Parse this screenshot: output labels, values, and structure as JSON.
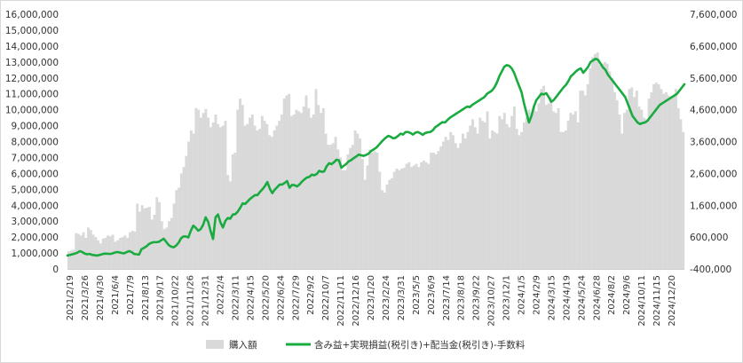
{
  "chart_data": {
    "type": "bar+line",
    "title": "",
    "colors": {
      "bar": "#d9d9d9",
      "line": "#1aab40",
      "axis_text": "#333333"
    },
    "left_axis": {
      "ylim": [
        0,
        16000000
      ],
      "ticks": [
        0,
        1000000,
        2000000,
        3000000,
        4000000,
        5000000,
        6000000,
        7000000,
        8000000,
        9000000,
        10000000,
        11000000,
        12000000,
        13000000,
        14000000,
        15000000,
        16000000
      ],
      "tick_labels": [
        "0",
        "1,000,000",
        "2,000,000",
        "3,000,000",
        "4,000,000",
        "5,000,000",
        "6,000,000",
        "7,000,000",
        "8,000,000",
        "9,000,000",
        "10,000,000",
        "11,000,000",
        "12,000,000",
        "13,000,000",
        "14,000,000",
        "15,000,000",
        "16,000,000"
      ]
    },
    "right_axis": {
      "ylim": [
        -400000,
        7600000
      ],
      "ticks": [
        -400000,
        600000,
        1600000,
        2600000,
        3600000,
        4600000,
        5600000,
        6600000,
        7600000
      ],
      "tick_labels": [
        "-400,000",
        "600,000",
        "1,600,000",
        "2,600,000",
        "3,600,000",
        "4,600,000",
        "5,600,000",
        "6,600,000",
        "7,600,000"
      ]
    },
    "x_tick_labels": [
      "2021/2/19",
      "2021/3/26",
      "2021/4/30",
      "2021/6/4",
      "2021/7/9",
      "2021/8/13",
      "2021/9/17",
      "2021/10/22",
      "2021/11/26",
      "2021/12/31",
      "2022/2/4",
      "2022/3/11",
      "2022/4/15",
      "2022/5/20",
      "2022/6/24",
      "2022/7/29",
      "2022/9/2",
      "2022/10/7",
      "2022/11/11",
      "2022/12/16",
      "2023/1/20",
      "2023/2/24",
      "2023/3/31",
      "2023/5/5",
      "2023/6/9",
      "2023/7/14",
      "2023/8/18",
      "2023/9/22",
      "2023/10/27",
      "2023/12/1",
      "2024/1/5",
      "2024/2/9",
      "2024/3/15",
      "2024/4/19",
      "2024/5/24",
      "2024/6/28",
      "2024/8/2",
      "2024/9/6",
      "2024/10/11",
      "2024/11/15",
      "2024/12/20"
    ],
    "legend": {
      "placement": "bottom",
      "bar_label": "購入額",
      "line_label": "含み益+実現損益(税引き)+配当金(税引き)-手数料"
    },
    "series": [
      {
        "name": "購入額",
        "axis": "left",
        "kind": "bar",
        "values": [
          1100000,
          1150000,
          1200000,
          2250000,
          2200000,
          2100000,
          2300000,
          1950000,
          2600000,
          2450000,
          2150000,
          2000000,
          1800000,
          1600000,
          1900000,
          1950000,
          2100000,
          2050000,
          2150000,
          1700000,
          1800000,
          1950000,
          2000000,
          2100000,
          1950000,
          2300000,
          2400000,
          2350000,
          4100000,
          3600000,
          4000000,
          3800000,
          3850000,
          3900000,
          3100000,
          3400000,
          4500000,
          4200000,
          3000000,
          2500000,
          2600000,
          3000000,
          3200000,
          4100000,
          4950000,
          5100000,
          6000000,
          6400000,
          7100000,
          8000000,
          8700000,
          8500000,
          10100000,
          10000000,
          9500000,
          9800000,
          10050000,
          9500000,
          8900000,
          9200000,
          9700000,
          9100000,
          8900000,
          9000000,
          9300000,
          5900000,
          5500000,
          7200000,
          7300000,
          10000000,
          10700000,
          10300000,
          9000000,
          9100000,
          9500000,
          9700000,
          9000000,
          8700000,
          8800000,
          9600000,
          9300000,
          9100000,
          8400000,
          8300000,
          8700000,
          9000000,
          9300000,
          9700000,
          10700000,
          10900000,
          11000000,
          9600000,
          9700000,
          10000000,
          9900000,
          9800000,
          10200000,
          10900000,
          10100000,
          9500000,
          9700000,
          11300000,
          10300000,
          9800000,
          10100000,
          8500000,
          7800000,
          7800000,
          7900000,
          8300000,
          7500000,
          7000000,
          6200000,
          6200000,
          7200000,
          7600000,
          7800000,
          8700000,
          8500000,
          8200000,
          6900000,
          5600000,
          6500000,
          7500000,
          7300000,
          7400000,
          7300000,
          6100000,
          4950000,
          4800000,
          5300000,
          5600000,
          5700000,
          6100000,
          6300000,
          6200000,
          6300000,
          6350000,
          6600000,
          6700000,
          6400000,
          6500000,
          6600000,
          6400000,
          6700000,
          6800000,
          6700000,
          6600000,
          7300000,
          7300000,
          7200000,
          7400000,
          7700000,
          8000000,
          8300000,
          8100000,
          8600000,
          8400000,
          7900000,
          7600000,
          7900000,
          8500000,
          8200000,
          8600000,
          9000000,
          9400000,
          8900000,
          8500000,
          9500000,
          9300000,
          9200000,
          9900000,
          8200000,
          8700000,
          8600000,
          8500000,
          9600000,
          9400000,
          9800000,
          9100000,
          8900000,
          9600000,
          10200000,
          8800000,
          8400000,
          8600000,
          9200000,
          9500000,
          10000000,
          9800000,
          10200000,
          9900000,
          10400000,
          11300000,
          11500000,
          10300000,
          10400000,
          10800000,
          9900000,
          9800000,
          10100000,
          8600000,
          8600000,
          8700000,
          9300000,
          9800000,
          9700000,
          9900000,
          9200000,
          11200000,
          11200000,
          10900000,
          11600000,
          12600000,
          13300000,
          13500000,
          13600000,
          12800000,
          12900000,
          13000000,
          12900000,
          12400000,
          12000000,
          11100000,
          10600000,
          9700000,
          8500000,
          9800000,
          10000000,
          11300000,
          11400000,
          10800000,
          11200000,
          10200000,
          10000000,
          9500000,
          9400000,
          10700000,
          11100000,
          11600000,
          11700000,
          11600000,
          11300000,
          11000000,
          11100000,
          10900000,
          10800000,
          10900000,
          11300000,
          10100000,
          9400000,
          8600000
        ]
      },
      {
        "name": "含み益+実現損益(税引き)+配当金(税引き)-手数料",
        "axis": "right",
        "kind": "line",
        "values": [
          20000,
          40000,
          60000,
          80000,
          110000,
          160000,
          130000,
          80000,
          60000,
          70000,
          40000,
          30000,
          20000,
          40000,
          60000,
          80000,
          80000,
          70000,
          80000,
          110000,
          130000,
          120000,
          100000,
          90000,
          130000,
          160000,
          130000,
          70000,
          60000,
          50000,
          220000,
          260000,
          310000,
          380000,
          420000,
          440000,
          440000,
          450000,
          500000,
          550000,
          450000,
          350000,
          300000,
          280000,
          330000,
          420000,
          560000,
          620000,
          620000,
          590000,
          800000,
          960000,
          890000,
          800000,
          850000,
          990000,
          1220000,
          1080000,
          790000,
          540000,
          1220000,
          1310000,
          1060000,
          900000,
          1110000,
          1200000,
          1180000,
          1310000,
          1320000,
          1400000,
          1520000,
          1660000,
          1640000,
          1720000,
          1800000,
          1860000,
          1920000,
          1920000,
          2020000,
          2100000,
          2200000,
          2330000,
          2120000,
          1980000,
          2090000,
          2170000,
          2250000,
          2250000,
          2300000,
          2360000,
          2150000,
          2240000,
          2230000,
          2190000,
          2250000,
          2340000,
          2410000,
          2470000,
          2490000,
          2560000,
          2540000,
          2580000,
          2680000,
          2650000,
          2660000,
          2820000,
          2920000,
          2890000,
          2950000,
          3030000,
          3010000,
          2780000,
          2840000,
          2900000,
          2980000,
          3020000,
          3080000,
          3130000,
          3190000,
          3170000,
          3150000,
          3180000,
          3220000,
          3300000,
          3350000,
          3400000,
          3480000,
          3570000,
          3650000,
          3720000,
          3780000,
          3750000,
          3700000,
          3720000,
          3780000,
          3850000,
          3820000,
          3900000,
          3900000,
          3870000,
          3820000,
          3880000,
          3900000,
          3860000,
          3810000,
          3870000,
          3890000,
          3900000,
          3950000,
          4050000,
          4100000,
          4160000,
          4210000,
          4200000,
          4280000,
          4350000,
          4400000,
          4450000,
          4500000,
          4550000,
          4600000,
          4650000,
          4700000,
          4680000,
          4750000,
          4800000,
          4850000,
          4900000,
          4950000,
          5000000,
          5100000,
          5150000,
          5200000,
          5300000,
          5450000,
          5650000,
          5800000,
          5950000,
          6000000,
          5980000,
          5900000,
          5760000,
          5550000,
          5350000,
          5150000,
          4800000,
          4500000,
          4200000,
          4400000,
          4700000,
          4900000,
          5000000,
          5100000,
          5080000,
          5120000,
          5000000,
          4850000,
          4900000,
          5000000,
          5100000,
          5200000,
          5300000,
          5380000,
          5500000,
          5650000,
          5720000,
          5800000,
          5860000,
          5900000,
          5760000,
          5850000,
          5950000,
          6100000,
          6150000,
          6200000,
          6170000,
          6050000,
          5930000,
          5850000,
          5700000,
          5600000,
          5500000,
          5400000,
          5300000,
          5200000,
          5100000,
          5000000,
          4800000,
          4600000,
          4400000,
          4300000,
          4200000,
          4150000,
          4180000,
          4200000,
          4250000,
          4350000,
          4450000,
          4550000,
          4650000,
          4750000,
          4800000,
          4850000,
          4900000,
          4950000,
          5000000,
          5050000,
          5100000,
          5200000,
          5300000,
          5400000
        ]
      }
    ]
  }
}
